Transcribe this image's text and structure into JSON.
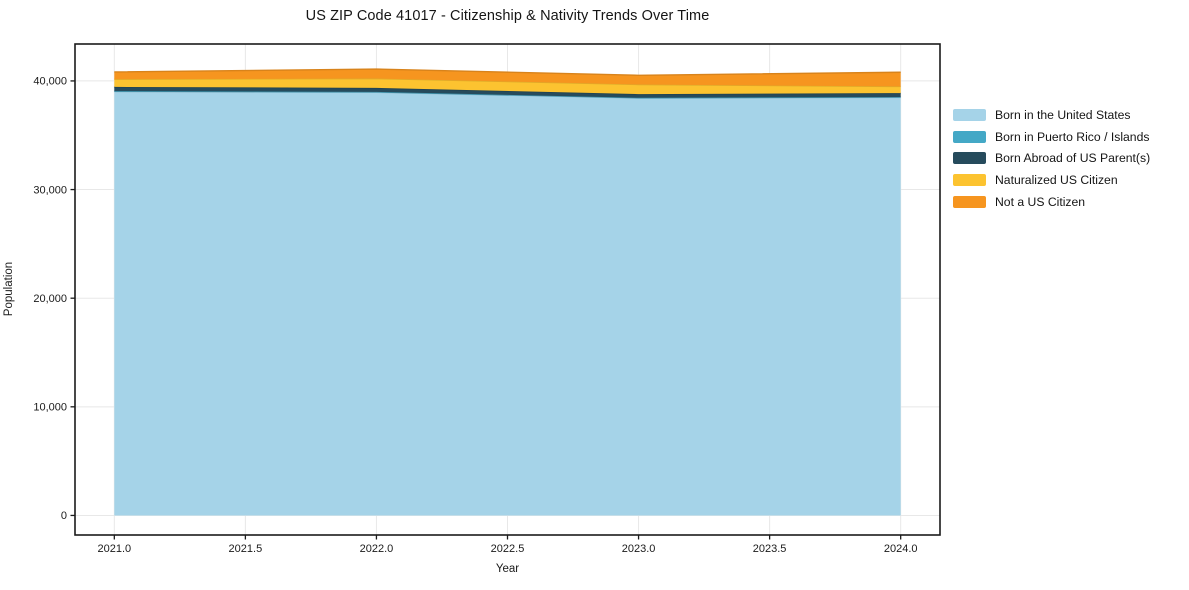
{
  "chart_data": {
    "type": "area",
    "stacked": true,
    "title": "US ZIP Code 41017 - Citizenship & Nativity Trends Over Time",
    "xlabel": "Year",
    "ylabel": "Population",
    "x": [
      2021,
      2022,
      2023,
      2024
    ],
    "series": [
      {
        "name": "Born in the United States",
        "color": "#A5D3E8",
        "values": [
          39020,
          38950,
          38420,
          38480
        ]
      },
      {
        "name": "Born in Puerto Rico / Islands",
        "color": "#44A8C6",
        "values": [
          40,
          40,
          30,
          35
        ]
      },
      {
        "name": "Born Abroad of US Parent(s)",
        "color": "#264B5C",
        "values": [
          390,
          370,
          340,
          365
        ]
      },
      {
        "name": "Naturalized US Citizen",
        "color": "#FCC330",
        "values": [
          710,
          860,
          880,
          610
        ]
      },
      {
        "name": "Not a US Citizen",
        "color": "#F6951F",
        "values": [
          670,
          870,
          850,
          1310
        ]
      }
    ],
    "x_tick_labels": [
      "2021.0",
      "2021.5",
      "2022.0",
      "2022.5",
      "2023.0",
      "2023.5",
      "2024.0"
    ],
    "x_tick_values": [
      2021,
      2021.5,
      2022,
      2022.5,
      2023,
      2023.5,
      2024
    ],
    "y_tick_labels": [
      "0",
      "10,000",
      "20,000",
      "30,000",
      "40,000"
    ],
    "y_tick_values": [
      0,
      10000,
      20000,
      30000,
      40000
    ],
    "xlim": [
      2020.85,
      2024.15
    ],
    "ylim": [
      -1800,
      43400
    ],
    "grid": true,
    "legend_position": "right-outside"
  },
  "colors": {
    "grid": "#E8E8E8",
    "spine": "#1a1a1a",
    "tick_label": "#1a1a1a",
    "background": "#ffffff"
  }
}
